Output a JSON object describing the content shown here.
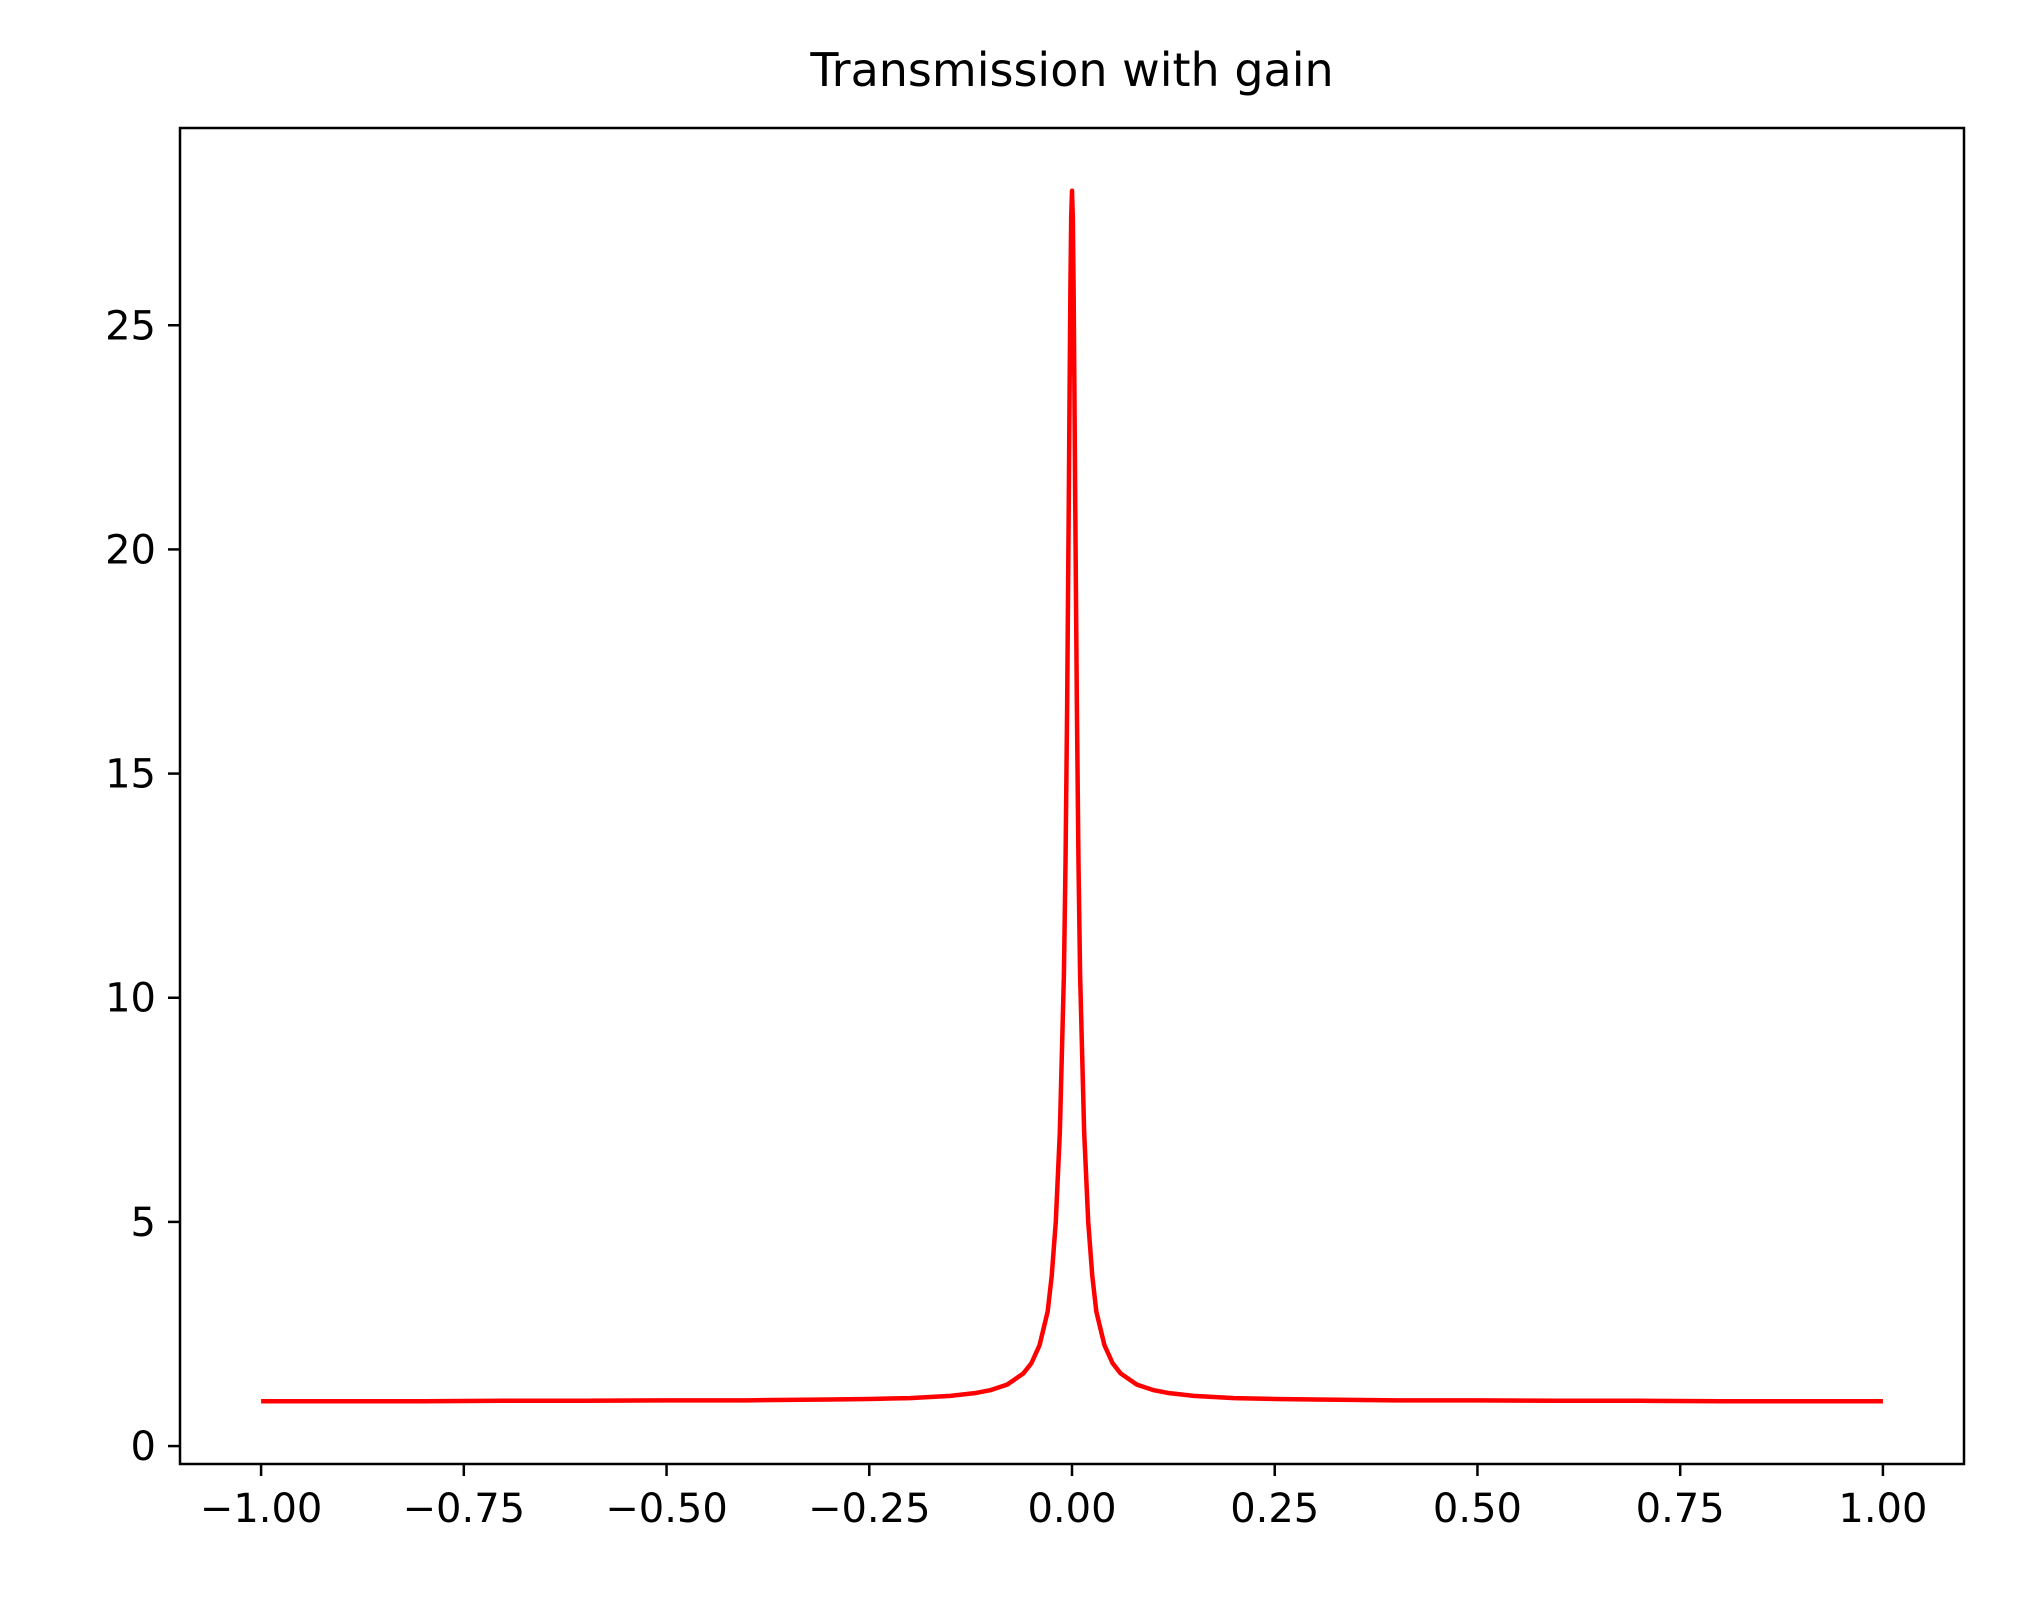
{
  "chart_data": {
    "type": "line",
    "title": "Transmission with gain",
    "xlabel": "",
    "ylabel": "",
    "xlim": [
      -1.1,
      1.1
    ],
    "ylim": [
      -0.4,
      29.4
    ],
    "x_ticks": [
      -1.0,
      -0.75,
      -0.5,
      -0.25,
      0.0,
      0.25,
      0.5,
      0.75,
      1.0
    ],
    "x_tick_labels": [
      "−1.00",
      "−0.75",
      "−0.50",
      "−0.25",
      "0.00",
      "0.25",
      "0.50",
      "0.75",
      "1.00"
    ],
    "y_ticks": [
      0,
      5,
      10,
      15,
      20,
      25
    ],
    "y_tick_labels": [
      "0",
      "5",
      "10",
      "15",
      "20",
      "25"
    ],
    "grid": false,
    "legend": "none",
    "series": [
      {
        "color": "#ff0000",
        "x": [
          -1.0,
          -0.9,
          -0.8,
          -0.7,
          -0.6,
          -0.5,
          -0.4,
          -0.3,
          -0.25,
          -0.2,
          -0.15,
          -0.12,
          -0.1,
          -0.08,
          -0.06,
          -0.05,
          -0.04,
          -0.03,
          -0.025,
          -0.02,
          -0.015,
          -0.01,
          -0.008,
          -0.006,
          -0.004,
          -0.003,
          -0.002,
          -0.001,
          0.0,
          0.001,
          0.002,
          0.003,
          0.004,
          0.006,
          0.008,
          0.01,
          0.015,
          0.02,
          0.025,
          0.03,
          0.04,
          0.05,
          0.06,
          0.08,
          0.1,
          0.12,
          0.15,
          0.2,
          0.25,
          0.3,
          0.4,
          0.5,
          0.6,
          0.7,
          0.8,
          0.9,
          1.0
        ],
        "y": [
          1.0,
          1.0,
          1.0,
          1.01,
          1.01,
          1.02,
          1.02,
          1.04,
          1.05,
          1.07,
          1.12,
          1.18,
          1.25,
          1.37,
          1.62,
          1.85,
          2.25,
          3.0,
          3.8,
          5.0,
          7.0,
          10.5,
          13.0,
          16.5,
          21.0,
          23.5,
          25.8,
          27.4,
          28.0,
          27.4,
          25.8,
          23.5,
          21.0,
          16.5,
          13.0,
          10.5,
          7.0,
          5.0,
          3.8,
          3.0,
          2.25,
          1.85,
          1.62,
          1.37,
          1.25,
          1.18,
          1.12,
          1.07,
          1.05,
          1.04,
          1.02,
          1.02,
          1.01,
          1.01,
          1.0,
          1.0,
          1.0
        ]
      }
    ]
  }
}
